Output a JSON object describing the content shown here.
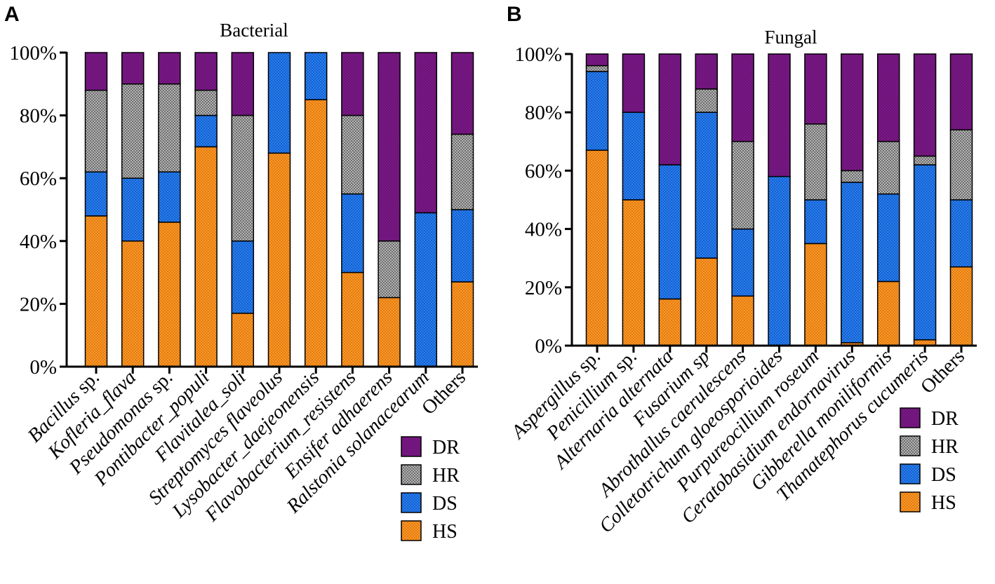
{
  "colors": {
    "DR": "#7a1a86",
    "HR": "#9a9a9a",
    "DS": "#1d6fe0",
    "HS": "#f28a1a"
  },
  "chart_data": [
    {
      "type": "bar",
      "stacked": true,
      "panel": "A",
      "title": "Bacterial",
      "ylim": [
        0,
        100
      ],
      "yticks": [
        "0%",
        "20%",
        "40%",
        "60%",
        "80%",
        "100%"
      ],
      "categories": [
        "Bacillus sp.",
        "Kofleria_flava",
        "Pseudomonas sp.",
        "Pontibacter_populi",
        "Flavitalea_soli",
        "Streptomyces flaveolus",
        "Lysobacter_daejeonensis",
        "Flavobacterium_resistens",
        "Ensifer adhaerens",
        "Ralstonia solanacearum",
        "Others"
      ],
      "series": [
        {
          "name": "HS",
          "values": [
            48,
            40,
            46,
            70,
            17,
            68,
            85,
            30,
            22,
            0,
            27
          ]
        },
        {
          "name": "DS",
          "values": [
            14,
            20,
            16,
            10,
            23,
            32,
            15,
            25,
            0,
            49,
            23
          ]
        },
        {
          "name": "HR",
          "values": [
            26,
            30,
            28,
            8,
            40,
            0,
            0,
            25,
            18,
            0,
            24
          ]
        },
        {
          "name": "DR",
          "values": [
            12,
            10,
            10,
            12,
            20,
            0,
            0,
            20,
            60,
            51,
            26
          ]
        }
      ],
      "legend": [
        "DR",
        "HR",
        "DS",
        "HS"
      ],
      "legend_position": "bottom-right"
    },
    {
      "type": "bar",
      "stacked": true,
      "panel": "B",
      "title": "Fungal",
      "ylim": [
        0,
        100
      ],
      "yticks": [
        "0%",
        "20%",
        "40%",
        "60%",
        "80%",
        "100%"
      ],
      "categories": [
        "Aspergillus sp.",
        "Penicillium sp.",
        "Alternaria alternata",
        "Fusarium sp",
        "Abrothallus caerulescens",
        "Colletotrichum gloeosporioides",
        "Purpureocillium roseum",
        "Ceratobasidium endornavirus",
        "Gibberella moniliformis",
        "Thanatephorus cucumeris",
        "Others"
      ],
      "series": [
        {
          "name": "HS",
          "values": [
            67,
            50,
            16,
            30,
            17,
            0,
            35,
            1,
            22,
            2,
            27
          ]
        },
        {
          "name": "DS",
          "values": [
            27,
            30,
            46,
            50,
            23,
            58,
            15,
            55,
            30,
            60,
            23
          ]
        },
        {
          "name": "HR",
          "values": [
            2,
            0,
            0,
            8,
            30,
            0,
            26,
            4,
            18,
            3,
            24
          ]
        },
        {
          "name": "DR",
          "values": [
            4,
            20,
            38,
            12,
            30,
            42,
            24,
            40,
            30,
            35,
            26
          ]
        }
      ],
      "legend": [
        "DR",
        "HR",
        "DS",
        "HS"
      ],
      "legend_position": "bottom-right"
    }
  ]
}
